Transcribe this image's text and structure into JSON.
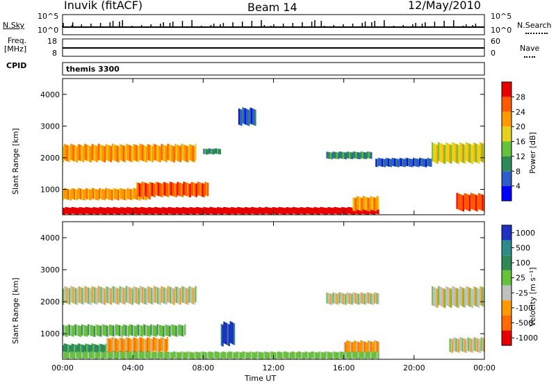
{
  "header": {
    "station": "Inuvik (fitACF)",
    "beam": "Beam 14",
    "date": "12/May/2010"
  },
  "summary_panels": {
    "nsky_label": "N.Sky",
    "nsky_ticks": [
      "10^5",
      "10^0"
    ],
    "nsearch_label": "N.Search",
    "nsearch_ticks": [
      "10^5",
      "10^0"
    ],
    "freq_label": "Freq.",
    "freq_unit": "[MHz]",
    "freq_ticks": [
      "18",
      "8"
    ],
    "nave_label": "Nave",
    "nave_ticks": [
      "60",
      "0"
    ],
    "cpid_label": "CPID",
    "cpid_value": "themis 3300"
  },
  "chart_data": [
    {
      "type": "heatmap",
      "panel": "power",
      "ylabel": "Slant Range [km]",
      "ylim": [
        200,
        4500
      ],
      "yticks": [
        "1000",
        "2000",
        "3000",
        "4000"
      ],
      "colorbar_label": "Power [dB]",
      "colorbar_ticks": [
        "4",
        "8",
        "12",
        "16",
        "20",
        "24",
        "28"
      ],
      "colors": [
        "#0000ff",
        "#2e5cc8",
        "#2e8b57",
        "#66c23a",
        "#e6d21e",
        "#ff9900",
        "#ff5a00",
        "#e60000"
      ],
      "bands": [
        {
          "t0": 0.0,
          "t1": 7.6,
          "r0": 1850,
          "r1": 2450,
          "level": 5
        },
        {
          "t0": 8.0,
          "t1": 9.0,
          "r0": 2100,
          "r1": 2300,
          "level": 2
        },
        {
          "t0": 0.0,
          "t1": 5.0,
          "r0": 650,
          "r1": 1050,
          "level": 5
        },
        {
          "t0": 4.2,
          "t1": 8.3,
          "r0": 750,
          "r1": 1250,
          "level": 6
        },
        {
          "t0": 0.0,
          "t1": 18.0,
          "r0": 200,
          "r1": 450,
          "level": 7
        },
        {
          "t0": 15.0,
          "t1": 17.6,
          "r0": 1950,
          "r1": 2200,
          "level": 2
        },
        {
          "t0": 17.8,
          "t1": 21.0,
          "r0": 1700,
          "r1": 2000,
          "level": 1
        },
        {
          "t0": 21.0,
          "t1": 24.0,
          "r0": 1800,
          "r1": 2500,
          "level": 4
        },
        {
          "t0": 16.5,
          "t1": 18.0,
          "r0": 300,
          "r1": 800,
          "level": 5
        },
        {
          "t0": 22.4,
          "t1": 24.0,
          "r0": 300,
          "r1": 900,
          "level": 6
        },
        {
          "t0": 10.0,
          "t1": 11.0,
          "r0": 3000,
          "r1": 3600,
          "level": 1
        }
      ]
    },
    {
      "type": "heatmap",
      "panel": "velocity",
      "ylabel": "Slant Range [km]",
      "ylim": [
        200,
        4500
      ],
      "yticks": [
        "1000",
        "2000",
        "3000",
        "4000"
      ],
      "colorbar_label": "Velocity [m s⁻¹]",
      "colorbar_ticks": [
        "1000",
        "500",
        "100",
        "25",
        "-25",
        "-100",
        "-500",
        "-1000"
      ],
      "colors": [
        "#2030c0",
        "#2e8b8b",
        "#2e8b57",
        "#66c23a",
        "#c0c0bc",
        "#ff9900",
        "#ff6a00",
        "#e60000"
      ],
      "bands": [
        {
          "t0": 0.0,
          "t1": 7.6,
          "r0": 1900,
          "r1": 2500,
          "level": 4
        },
        {
          "t0": 0.0,
          "t1": 7.0,
          "r0": 900,
          "r1": 1300,
          "level": 3
        },
        {
          "t0": 0.0,
          "t1": 5.0,
          "r0": 300,
          "r1": 700,
          "level": 2
        },
        {
          "t0": 2.5,
          "t1": 6.0,
          "r0": 400,
          "r1": 900,
          "level": 5
        },
        {
          "t0": 9.0,
          "t1": 9.8,
          "r0": 600,
          "r1": 1400,
          "level": 0
        },
        {
          "t0": 15.0,
          "t1": 18.0,
          "r0": 1900,
          "r1": 2300,
          "level": 4
        },
        {
          "t0": 16.0,
          "t1": 18.0,
          "r0": 300,
          "r1": 800,
          "level": 5
        },
        {
          "t0": 21.0,
          "t1": 24.0,
          "r0": 1800,
          "r1": 2500,
          "level": 4
        },
        {
          "t0": 22.0,
          "t1": 24.0,
          "r0": 400,
          "r1": 900,
          "level": 4
        },
        {
          "t0": 0.0,
          "t1": 18.0,
          "r0": 200,
          "r1": 450,
          "level": 3
        }
      ]
    }
  ],
  "xaxis": {
    "xlabel": "Time UT",
    "xlim": [
      0,
      24
    ],
    "ticks": [
      "00:00",
      "04:00",
      "08:00",
      "12:00",
      "16:00",
      "20:00",
      "00:00"
    ]
  }
}
